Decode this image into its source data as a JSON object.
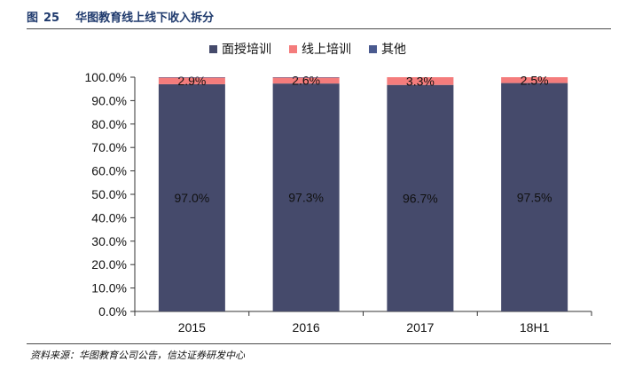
{
  "figure": {
    "label": "图",
    "number": "25",
    "title": "华图教育线上线下收入拆分",
    "source": "资料来源：华图教育公司公告，信达证券研发中心"
  },
  "colors": {
    "面授培训": "#454a6b",
    "线上培训": "#f47c7c",
    "其他": "#4a5a8f",
    "axis": "#333333"
  },
  "chart_data": {
    "type": "bar",
    "stacked": true,
    "categories": [
      "2015",
      "2016",
      "2017",
      "18H1"
    ],
    "series": [
      {
        "name": "面授培训",
        "values": [
          97.0,
          97.3,
          96.7,
          97.5
        ],
        "labels": [
          "97.0%",
          "97.3%",
          "96.7%",
          "97.5%"
        ]
      },
      {
        "name": "线上培训",
        "values": [
          2.9,
          2.6,
          3.3,
          2.5
        ],
        "labels": [
          "2.9%",
          "2.6%",
          "3.3%",
          "2.5%"
        ]
      },
      {
        "name": "其他",
        "values": [
          0.1,
          0.1,
          0.0,
          0.0
        ],
        "labels": []
      }
    ],
    "ylim": [
      0,
      100
    ],
    "yticks": [
      "0.0%",
      "10.0%",
      "20.0%",
      "30.0%",
      "40.0%",
      "50.0%",
      "60.0%",
      "70.0%",
      "80.0%",
      "90.0%",
      "100.0%"
    ],
    "legend": "top-center",
    "grid": false
  }
}
